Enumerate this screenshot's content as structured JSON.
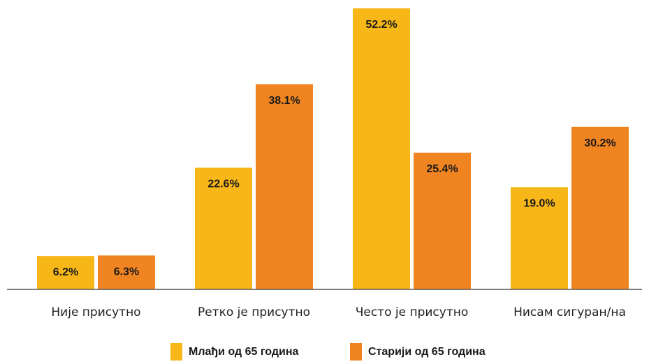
{
  "chart_data": {
    "type": "bar",
    "categories": [
      "Није присутно",
      "Ретко је присутно",
      "Често је присутно",
      "Нисам сигуран/на"
    ],
    "series": [
      {
        "name": "Млађи од 65 година",
        "values": [
          6.2,
          22.6,
          52.2,
          19.0
        ],
        "labels": [
          "6.2%",
          "22.6%",
          "52.2%",
          "19.0%"
        ],
        "color": "#F7B718"
      },
      {
        "name": "Старији од 65 година",
        "values": [
          6.3,
          38.1,
          25.4,
          30.2
        ],
        "labels": [
          "6.3%",
          "38.1%",
          "25.4%",
          "30.2%"
        ],
        "color": "#F08421"
      }
    ],
    "ylim": [
      0,
      52.2
    ],
    "grid": false,
    "legend_position": "bottom",
    "axis_color": "#555555"
  }
}
